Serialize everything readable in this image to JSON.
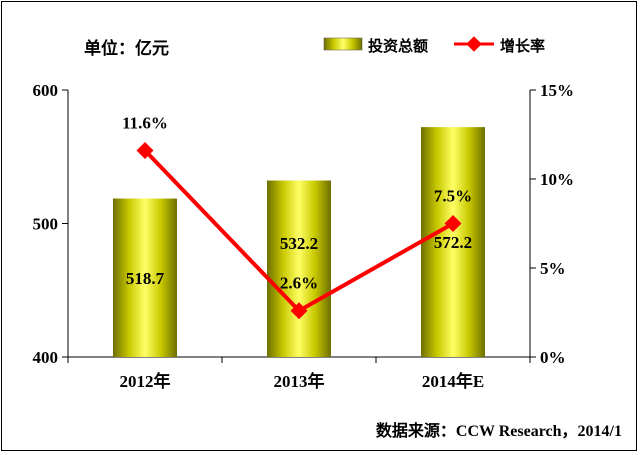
{
  "chart_data": {
    "type": "bar",
    "unit_label": "单位：亿元",
    "categories": [
      "2012年",
      "2013年",
      "2014年E"
    ],
    "series": [
      {
        "name": "投资总额",
        "kind": "bar",
        "axis": "left",
        "values": [
          518.7,
          532.2,
          572.2
        ],
        "labels": [
          "518.7",
          "532.2",
          "572.2"
        ],
        "color": "#c8c800"
      },
      {
        "name": "增长率",
        "kind": "line",
        "axis": "right",
        "values": [
          11.6,
          2.6,
          7.5
        ],
        "labels": [
          "11.6%",
          "2.6%",
          "7.5%"
        ],
        "color": "#ff0000"
      }
    ],
    "left_axis": {
      "min": 400,
      "max": 600,
      "ticks": [
        "400",
        "500",
        "600"
      ],
      "tick_values": [
        400,
        500,
        600
      ]
    },
    "right_axis": {
      "min": 0,
      "max": 15,
      "ticks": [
        "0%",
        "5%",
        "10%",
        "15%"
      ],
      "tick_values": [
        0,
        5,
        10,
        15
      ]
    },
    "legend_position": "top-right",
    "grid": false,
    "source": "数据来源：CCW Research，2014/1"
  }
}
